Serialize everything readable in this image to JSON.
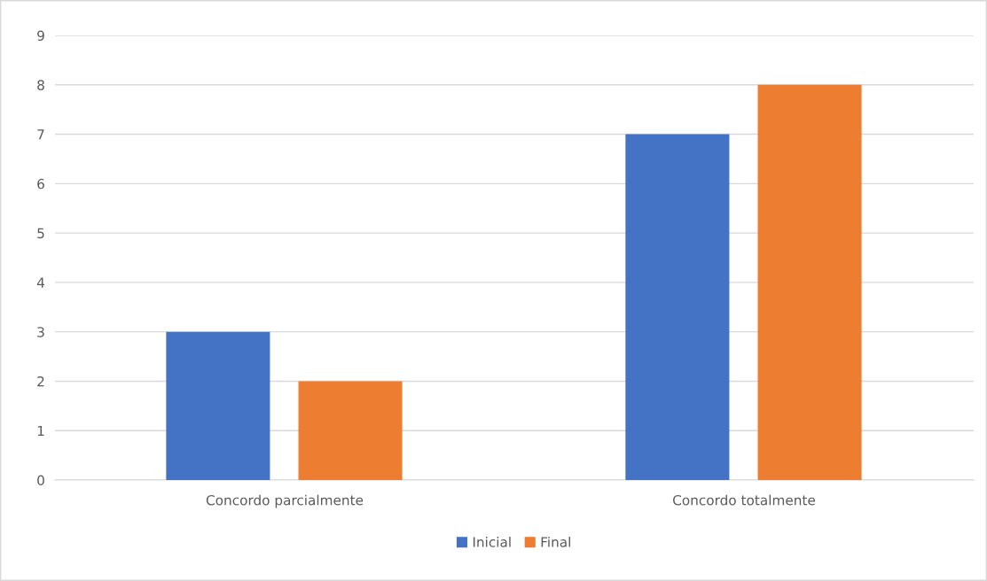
{
  "chart_data": {
    "type": "bar",
    "categories": [
      "Concordo parcialmente",
      "Concordo totalmente"
    ],
    "series": [
      {
        "name": "Inicial",
        "color": "#4472c4",
        "values": [
          3,
          7
        ]
      },
      {
        "name": "Final",
        "color": "#ed7d31",
        "values": [
          2,
          8
        ]
      }
    ],
    "ylim": [
      0,
      9
    ],
    "yticks": [
      0,
      1,
      2,
      3,
      4,
      5,
      6,
      7,
      8,
      9
    ],
    "grid": "y",
    "legend": "bottom"
  }
}
